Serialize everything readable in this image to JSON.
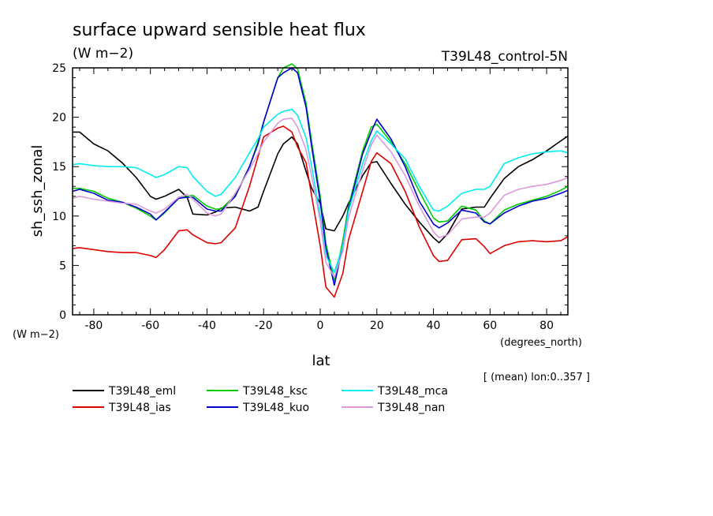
{
  "chart_data": {
    "type": "line",
    "title": "surface upward sensible heat flux",
    "units_label": "(W m−2)",
    "run_label": "T39L48_control-5N",
    "ylabel": "sh_ssh_zonal",
    "y_units": "(W m−2)",
    "xlabel": "lat",
    "x_units": "(degrees_north)",
    "footnote": "[ (mean) lon:0..357 ]",
    "xlim": [
      -87.5,
      87.5
    ],
    "ylim": [
      0,
      25
    ],
    "xticks": [
      -80,
      -60,
      -40,
      -20,
      0,
      20,
      40,
      60,
      80
    ],
    "yticks": [
      0,
      5,
      10,
      15,
      20,
      25
    ],
    "x": [
      -87.5,
      -85,
      -80,
      -75,
      -70,
      -65,
      -60,
      -58,
      -55,
      -50,
      -47,
      -45,
      -40,
      -37,
      -35,
      -30,
      -25,
      -22,
      -20,
      -15,
      -13,
      -10,
      -8,
      -5,
      -3,
      0,
      2,
      5,
      8,
      10,
      15,
      18,
      20,
      25,
      30,
      35,
      40,
      42,
      45,
      50,
      55,
      58,
      60,
      65,
      70,
      75,
      80,
      85,
      87.5
    ],
    "series": [
      {
        "name": "T39L48_eml",
        "color": "#000000",
        "values": [
          18.5,
          18.5,
          17.3,
          16.6,
          15.4,
          13.9,
          12.0,
          11.7,
          12.0,
          12.7,
          11.9,
          10.2,
          10.1,
          10.4,
          10.8,
          10.9,
          10.5,
          10.9,
          12.5,
          16.3,
          17.3,
          18.0,
          17.3,
          14.5,
          12.8,
          11.3,
          8.7,
          8.5,
          10.0,
          11.3,
          14.1,
          15.4,
          15.5,
          13.3,
          11.2,
          9.4,
          7.8,
          7.3,
          8.2,
          10.7,
          10.9,
          10.9,
          11.8,
          13.8,
          15.0,
          15.7,
          16.6,
          17.6,
          18.1
        ]
      },
      {
        "name": "T39L48_ias",
        "color": "#dd0000",
        "values": [
          6.7,
          6.8,
          6.6,
          6.4,
          6.3,
          6.3,
          6.0,
          5.8,
          6.6,
          8.5,
          8.6,
          8.1,
          7.3,
          7.2,
          7.3,
          8.8,
          13.0,
          16.0,
          18.0,
          18.9,
          19.1,
          18.5,
          17.0,
          15.4,
          12.0,
          7.0,
          2.8,
          1.8,
          4.2,
          7.6,
          12.5,
          15.5,
          16.4,
          15.3,
          12.5,
          8.9,
          6.0,
          5.4,
          5.5,
          7.6,
          7.7,
          6.9,
          6.2,
          7.0,
          7.4,
          7.5,
          7.4,
          7.5,
          7.9
        ]
      },
      {
        "name": "T39L48_ksc",
        "color": "#00cc00",
        "values": [
          12.8,
          12.8,
          12.5,
          11.8,
          11.4,
          10.8,
          10.0,
          9.6,
          10.3,
          11.8,
          12.0,
          12.1,
          11.0,
          10.7,
          10.7,
          12.1,
          15.0,
          17.5,
          19.5,
          24.0,
          25.0,
          25.4,
          24.9,
          21.4,
          17.5,
          12.0,
          7.2,
          3.5,
          7.5,
          11.0,
          16.6,
          19.0,
          19.3,
          17.5,
          15.3,
          12.5,
          9.8,
          9.4,
          9.5,
          11.0,
          10.6,
          9.5,
          9.2,
          10.6,
          11.2,
          11.6,
          12.0,
          12.6,
          13.0
        ]
      },
      {
        "name": "T39L48_kuo",
        "color": "#0000cc",
        "values": [
          12.5,
          12.7,
          12.3,
          11.6,
          11.4,
          10.9,
          10.2,
          9.6,
          10.4,
          11.8,
          11.9,
          11.9,
          10.7,
          10.5,
          10.5,
          12.0,
          15.0,
          17.3,
          19.5,
          24.0,
          24.5,
          25.0,
          24.5,
          21.0,
          17.0,
          11.5,
          6.8,
          3.0,
          7.0,
          10.7,
          16.3,
          18.5,
          19.8,
          17.8,
          15.0,
          11.5,
          9.2,
          8.8,
          9.3,
          10.6,
          10.3,
          9.4,
          9.2,
          10.3,
          11.0,
          11.5,
          11.8,
          12.3,
          12.6
        ]
      },
      {
        "name": "T39L48_mca",
        "color": "#00eeee",
        "values": [
          15.2,
          15.3,
          15.1,
          15.0,
          15.0,
          14.9,
          14.2,
          13.9,
          14.2,
          15.0,
          14.9,
          14.0,
          12.5,
          12.0,
          12.2,
          13.9,
          16.4,
          17.8,
          19.0,
          20.3,
          20.6,
          20.8,
          20.2,
          17.9,
          15.0,
          10.0,
          6.0,
          4.3,
          7.0,
          10.5,
          15.3,
          17.6,
          18.6,
          17.3,
          15.8,
          13.0,
          10.6,
          10.5,
          11.0,
          12.3,
          12.7,
          12.7,
          13.0,
          15.3,
          15.9,
          16.3,
          16.5,
          16.6,
          16.4
        ]
      },
      {
        "name": "T39L48_nan",
        "color": "#dd99dd",
        "values": [
          11.8,
          12.0,
          11.7,
          11.5,
          11.3,
          11.2,
          10.5,
          10.3,
          10.7,
          11.9,
          12.2,
          11.7,
          10.3,
          10.0,
          10.2,
          12.3,
          14.7,
          16.3,
          17.5,
          19.4,
          19.8,
          19.9,
          19.0,
          16.7,
          14.0,
          9.5,
          5.3,
          3.8,
          6.5,
          9.8,
          14.6,
          17.2,
          18.2,
          16.5,
          14.1,
          11.0,
          8.4,
          7.8,
          8.1,
          9.7,
          9.9,
          9.9,
          10.3,
          12.1,
          12.7,
          13.0,
          13.2,
          13.6,
          13.9
        ]
      }
    ]
  }
}
